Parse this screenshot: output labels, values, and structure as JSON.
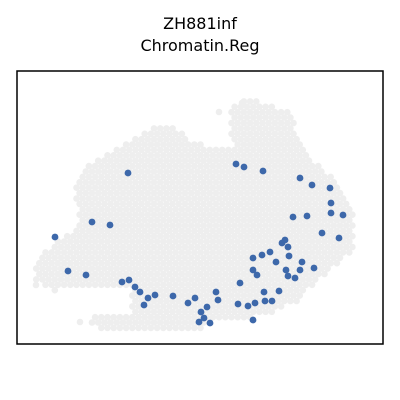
{
  "chart_data": {
    "type": "scatter",
    "title": "ZH881inf",
    "subtitle": "Chromatin.Reg",
    "xlabel": "",
    "ylabel": "",
    "axes_ticks": false,
    "grid": false,
    "colors": {
      "background_spots": "#eeeeee",
      "highlight_spots": "#3d68aa",
      "frame": "#000000"
    },
    "series": [
      {
        "role": "highlighted",
        "points": [
          [
            128,
            173
          ],
          [
            236,
            164
          ],
          [
            244,
            167
          ],
          [
            263,
            171
          ],
          [
            300,
            178
          ],
          [
            312,
            185
          ],
          [
            330,
            188
          ],
          [
            293,
            217
          ],
          [
            307,
            216
          ],
          [
            331,
            203
          ],
          [
            343,
            215
          ],
          [
            331,
            213
          ],
          [
            92,
            222
          ],
          [
            110,
            225
          ],
          [
            55,
            237
          ],
          [
            68,
            271
          ],
          [
            86,
            275
          ],
          [
            322,
            233
          ],
          [
            339,
            238
          ],
          [
            285,
            240
          ],
          [
            282,
            243
          ],
          [
            288,
            247
          ],
          [
            270,
            252
          ],
          [
            262,
            255
          ],
          [
            253,
            258
          ],
          [
            276,
            262
          ],
          [
            289,
            256
          ],
          [
            302,
            262
          ],
          [
            314,
            268
          ],
          [
            300,
            270
          ],
          [
            286,
            270
          ],
          [
            253,
            270
          ],
          [
            257,
            275
          ],
          [
            288,
            276
          ],
          [
            295,
            278
          ],
          [
            129,
            280
          ],
          [
            122,
            282
          ],
          [
            135,
            287
          ],
          [
            140,
            292
          ],
          [
            148,
            298
          ],
          [
            144,
            305
          ],
          [
            155,
            295
          ],
          [
            173,
            296
          ],
          [
            195,
            298
          ],
          [
            188,
            303
          ],
          [
            216,
            292
          ],
          [
            218,
            300
          ],
          [
            240,
            283
          ],
          [
            264,
            292
          ],
          [
            279,
            291
          ],
          [
            272,
            301
          ],
          [
            265,
            301
          ],
          [
            255,
            303
          ],
          [
            248,
            306
          ],
          [
            238,
            304
          ],
          [
            207,
            307
          ],
          [
            201,
            312
          ],
          [
            204,
            318
          ],
          [
            210,
            323
          ],
          [
            199,
            322
          ],
          [
            253,
            320
          ]
        ]
      },
      {
        "role": "background",
        "points": []
      }
    ]
  }
}
